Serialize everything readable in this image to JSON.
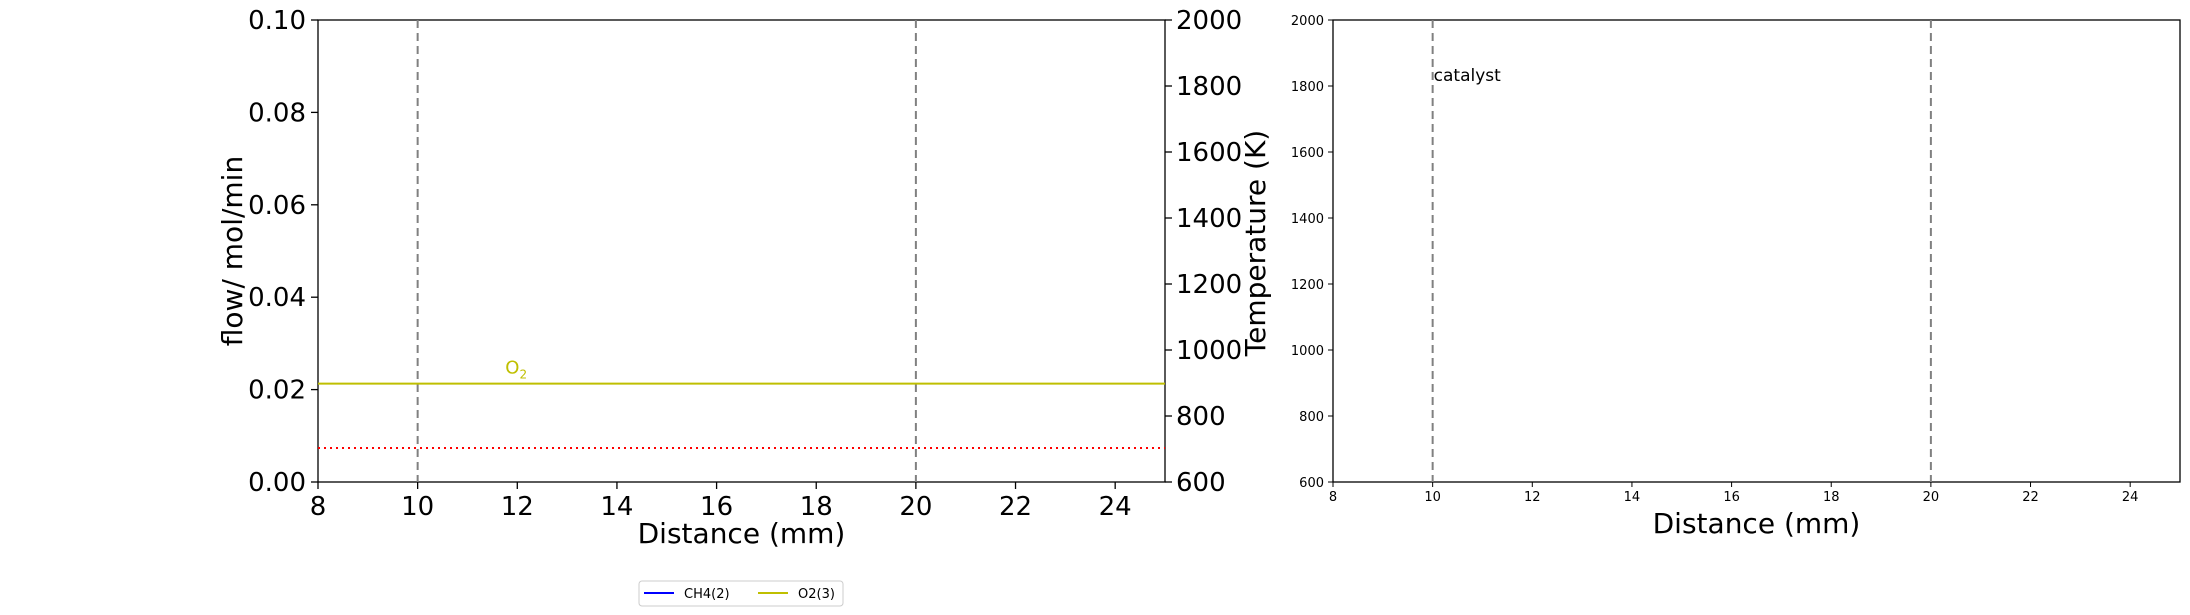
{
  "colors": {
    "ch4": "#0000ff",
    "o2": "#bfbf00",
    "temp_dotted": "#ff0000",
    "vline": "#808080",
    "axis": "#000000"
  },
  "legend": {
    "placement": "bottom-center below left chart",
    "items": [
      {
        "label": "CH4(2)",
        "color": "#0000ff"
      },
      {
        "label": "O2(3)",
        "color": "#bfbf00"
      }
    ]
  },
  "chart_data": [
    {
      "type": "line",
      "xlabel": "Distance (mm)",
      "ylabel": "flow/ mol/min",
      "y2label": "Temperature (K)",
      "xlim": [
        8,
        25
      ],
      "ylim": [
        0.0,
        0.1
      ],
      "y2lim": [
        600,
        2000
      ],
      "xticks": [
        "8",
        "10",
        "12",
        "14",
        "16",
        "18",
        "20",
        "22",
        "24"
      ],
      "yticks": [
        "0.00",
        "0.02",
        "0.04",
        "0.06",
        "0.08",
        "0.10"
      ],
      "y2ticks": [
        "600",
        "800",
        "1000",
        "1200",
        "1400",
        "1600",
        "1800",
        "2000"
      ],
      "vlines": [
        10,
        20
      ],
      "series": [
        {
          "name": "O2(3)",
          "axis": "left",
          "x": [
            8,
            25
          ],
          "y": [
            0.0213,
            0.0213
          ],
          "style": "solid",
          "label": "O",
          "label_sub": "2",
          "label_x": 12,
          "label_y": 0.0235
        },
        {
          "axis": "right",
          "x": [
            8,
            25
          ],
          "y": [
            703,
            703
          ],
          "style": "dotted",
          "color": "#ff0000"
        }
      ],
      "legend": [
        "CH4(2)",
        "O2(3)"
      ],
      "grid": false
    },
    {
      "type": "line",
      "xlabel": "Distance (mm)",
      "ylabel": "",
      "xlim": [
        8,
        25
      ],
      "ylim": [
        600,
        2000
      ],
      "xticks": [
        "8",
        "10",
        "12",
        "14",
        "16",
        "18",
        "20",
        "22",
        "24"
      ],
      "yticks": [
        "600",
        "800",
        "1000",
        "1200",
        "1400",
        "1600",
        "1800",
        "2000"
      ],
      "vlines": [
        10,
        20
      ],
      "annotations": [
        {
          "text": "catalyst",
          "x": 10,
          "y": 1830
        }
      ],
      "series": [],
      "grid": false
    }
  ]
}
